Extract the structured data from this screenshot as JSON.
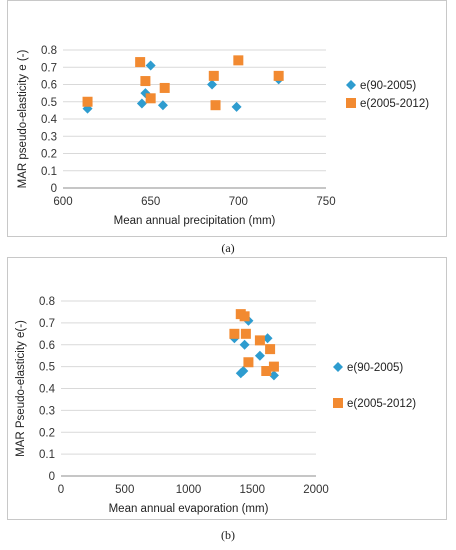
{
  "figure": {
    "caption_a": "(a)",
    "caption_b": "(b)"
  },
  "chart_data": [
    {
      "type": "scatter",
      "xlabel": "Mean annual precipitation (mm)",
      "ylabel": "MAR pseudo-elasticity e (-)",
      "xlim": [
        600,
        750
      ],
      "ylim": [
        0,
        0.8
      ],
      "xticks": [
        600,
        650,
        700,
        750
      ],
      "yticks": [
        0,
        0.1,
        0.2,
        0.3,
        0.4,
        0.5,
        0.6,
        0.7,
        0.8
      ],
      "grid": "horizontal",
      "legend_position": "right",
      "series": [
        {
          "name": "e(90-2005)",
          "color": "#2e9ccf",
          "marker": "diamond",
          "points": [
            [
              614,
              0.46
            ],
            [
              645,
              0.49
            ],
            [
              647,
              0.55
            ],
            [
              650,
              0.71
            ],
            [
              657,
              0.48
            ],
            [
              685,
              0.6
            ],
            [
              699,
              0.47
            ],
            [
              723,
              0.63
            ]
          ]
        },
        {
          "name": "e(2005-2012)",
          "color": "#f28a31",
          "marker": "square",
          "points": [
            [
              614,
              0.5
            ],
            [
              644,
              0.73
            ],
            [
              647,
              0.62
            ],
            [
              650,
              0.52
            ],
            [
              658,
              0.58
            ],
            [
              686,
              0.65
            ],
            [
              687,
              0.48
            ],
            [
              700,
              0.74
            ],
            [
              723,
              0.65
            ]
          ]
        }
      ]
    },
    {
      "type": "scatter",
      "xlabel": "Mean annual evaporation (mm)",
      "ylabel": "MAR Pseudo-elasticity e(-)",
      "xlim": [
        0,
        2000
      ],
      "ylim": [
        0,
        0.8
      ],
      "xticks": [
        0,
        500,
        1000,
        1500,
        2000
      ],
      "yticks": [
        0,
        0.1,
        0.2,
        0.3,
        0.4,
        0.5,
        0.6,
        0.7,
        0.8
      ],
      "grid": "horizontal",
      "legend_position": "right",
      "series": [
        {
          "name": "e(90-2005)",
          "color": "#2e9ccf",
          "marker": "diamond",
          "points": [
            [
              1360,
              0.63
            ],
            [
              1410,
              0.47
            ],
            [
              1430,
              0.48
            ],
            [
              1440,
              0.6
            ],
            [
              1470,
              0.71
            ],
            [
              1560,
              0.55
            ],
            [
              1620,
              0.63
            ],
            [
              1670,
              0.46
            ]
          ]
        },
        {
          "name": "e(2005-2012)",
          "color": "#f28a31",
          "marker": "square",
          "points": [
            [
              1360,
              0.65
            ],
            [
              1410,
              0.74
            ],
            [
              1440,
              0.73
            ],
            [
              1450,
              0.65
            ],
            [
              1470,
              0.52
            ],
            [
              1560,
              0.62
            ],
            [
              1610,
              0.48
            ],
            [
              1640,
              0.58
            ],
            [
              1670,
              0.5
            ]
          ]
        }
      ]
    }
  ]
}
